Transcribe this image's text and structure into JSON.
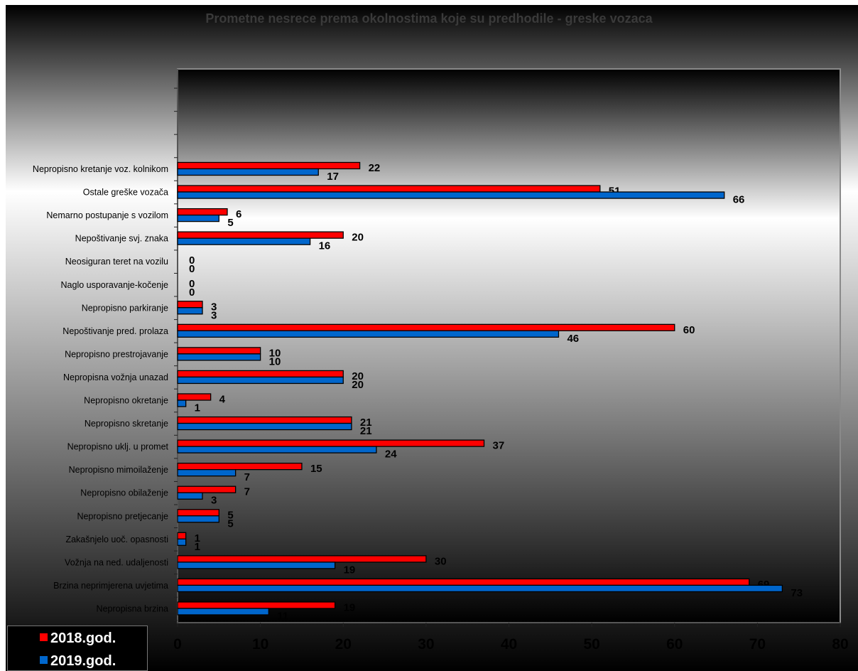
{
  "chart_data": {
    "type": "bar",
    "orientation": "horizontal",
    "title": "Prometne nesrece prema okolnostima koje su predhodile - greske vozaca",
    "categories": [
      "Nepropisno kretanje voz. kolnikom",
      "Ostale greške vozača",
      "Nemarno postupanje s vozilom",
      "Nepoštivanje svj. znaka",
      "Neosiguran teret na vozilu",
      "Naglo usporavanje-kočenje",
      "Nepropisno parkiranje",
      "Nepoštivanje pred. prolaza",
      "Nepropisno prestrojavanje",
      "Nepropisna vožnja unazad",
      "Nepropisno okretanje",
      "Nepropisno skretanje",
      "Nepropisno uklj. u promet",
      "Nepropisno mimoilaženje",
      "Nepropisno obilaženje",
      "Nepropisno pretjecanje",
      "Zakašnjelo uoč. opasnosti",
      "Vožnja na ned. udaljenosti",
      "Brzina neprimjerena uvjetima",
      "Nepropisna brzina"
    ],
    "series": [
      {
        "name": "2018.god.",
        "color": "#ff0000",
        "values": [
          22,
          51,
          6,
          20,
          0,
          0,
          3,
          60,
          10,
          20,
          4,
          21,
          37,
          15,
          7,
          5,
          1,
          30,
          69,
          19
        ]
      },
      {
        "name": "2019.god.",
        "color": "#0066cc",
        "values": [
          17,
          66,
          5,
          16,
          0,
          0,
          3,
          46,
          10,
          20,
          1,
          21,
          24,
          7,
          3,
          5,
          1,
          19,
          73,
          11
        ]
      }
    ],
    "xlim": [
      0,
      80
    ],
    "xticks": [
      "0",
      "10",
      "20",
      "30",
      "40",
      "50",
      "60",
      "70",
      "80"
    ],
    "legend": "bottom-left",
    "grid": false
  }
}
